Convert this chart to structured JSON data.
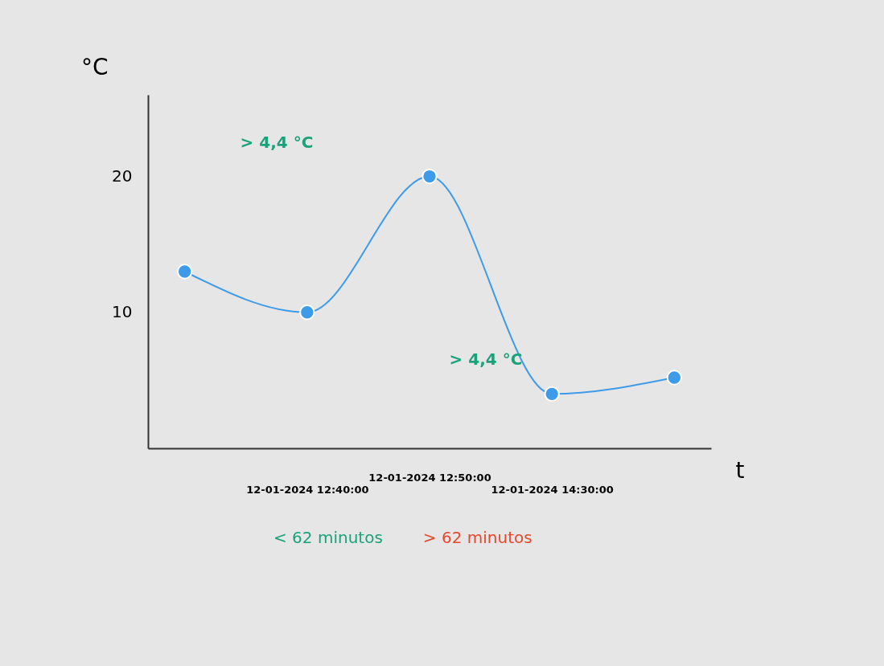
{
  "chart_data": {
    "type": "line",
    "xlabel": "t",
    "ylabel": "°C",
    "categories": [
      null,
      "12-01-2024 12:40:00",
      "12-01-2024 12:50:00",
      "12-01-2024 14:30:00",
      null
    ],
    "series": [
      {
        "color": "#3d9be9",
        "values": [
          13,
          10,
          20,
          4,
          5.2
        ]
      }
    ],
    "ylim": [
      0,
      26
    ],
    "yticks": [
      10,
      20
    ],
    "grid": false,
    "marker": "circle",
    "line_style": "solid",
    "annotations": [
      "> 4,4 °C",
      "> 4,4 °C",
      "< 62 minutos",
      "> 62 minutos"
    ]
  }
}
